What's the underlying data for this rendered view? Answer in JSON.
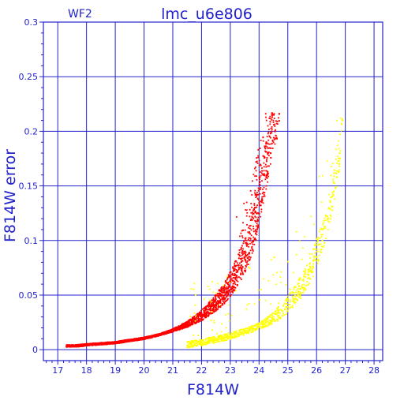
{
  "chart_data": {
    "type": "scatter",
    "title": "lmc_u6e806",
    "subtitle": "WF2",
    "xlabel": "F814W",
    "ylabel": "F814W error",
    "xlim": [
      16.5,
      28.3
    ],
    "ylim": [
      -0.01,
      0.3
    ],
    "xticks": [
      "17",
      "18",
      "19",
      "20",
      "21",
      "22",
      "23",
      "24",
      "25",
      "26",
      "27",
      "28"
    ],
    "yticks": [
      "0",
      "0.05",
      "0.1",
      "0.15",
      "0.2",
      "0.25",
      "0.3"
    ],
    "grid": true,
    "colors": {
      "axis": "#2222cc",
      "grid": "#2222cc",
      "red": "#ee0000",
      "yellow": "#ffff00"
    },
    "series": [
      {
        "color": "#ff0000",
        "x": [
          17.3,
          17.6,
          18.0,
          18.5,
          19.0,
          19.5,
          20.0,
          20.5,
          21.0,
          21.5,
          22.0,
          22.4,
          22.8,
          23.1,
          23.4,
          23.6,
          23.8,
          23.95,
          24.1,
          24.25,
          24.4,
          24.55,
          24.7
        ],
        "y": [
          0.003,
          0.003,
          0.004,
          0.005,
          0.006,
          0.008,
          0.01,
          0.013,
          0.017,
          0.022,
          0.029,
          0.037,
          0.047,
          0.058,
          0.072,
          0.084,
          0.1,
          0.118,
          0.138,
          0.158,
          0.18,
          0.2,
          0.216
        ]
      },
      {
        "color": "#ffff00",
        "x": [
          21.5,
          22.0,
          22.5,
          23.0,
          23.5,
          24.0,
          24.5,
          24.9,
          25.2,
          25.5,
          25.8,
          26.0,
          26.2,
          26.4,
          26.6,
          26.8,
          26.9
        ],
        "y": [
          0.004,
          0.006,
          0.009,
          0.012,
          0.016,
          0.021,
          0.028,
          0.037,
          0.046,
          0.057,
          0.072,
          0.085,
          0.1,
          0.12,
          0.145,
          0.18,
          0.21
        ]
      }
    ]
  }
}
